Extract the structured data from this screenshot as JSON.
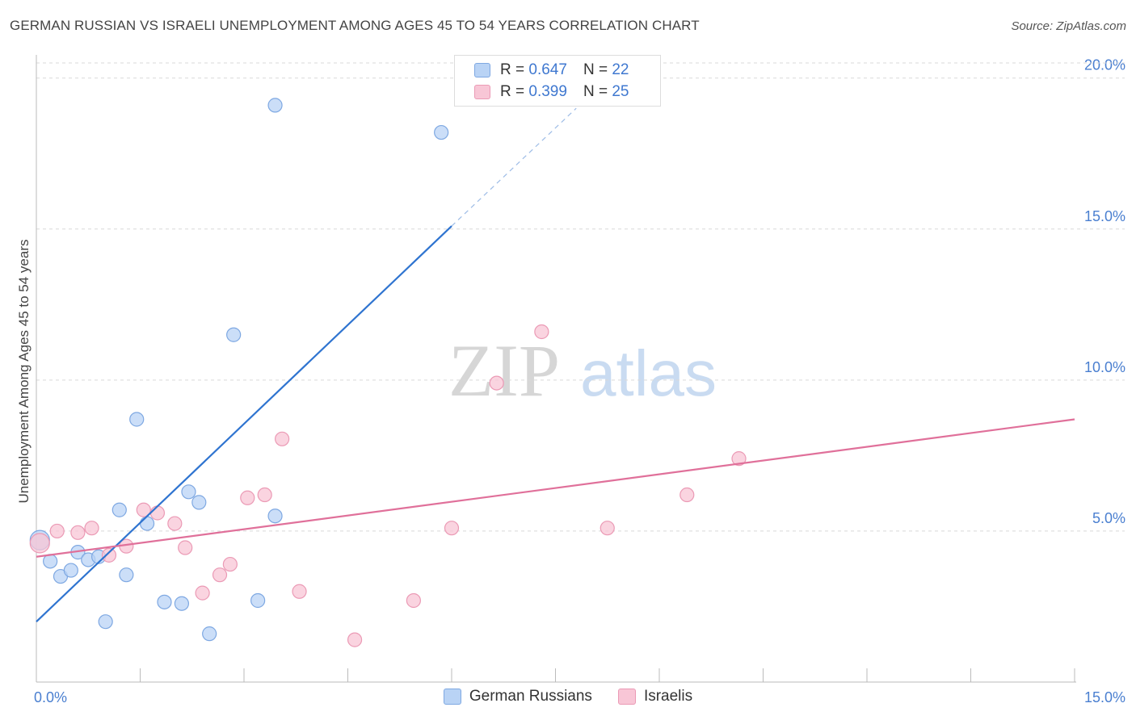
{
  "title": "GERMAN RUSSIAN VS ISRAELI UNEMPLOYMENT AMONG AGES 45 TO 54 YEARS CORRELATION CHART",
  "source": "Source: ZipAtlas.com",
  "watermark": {
    "zip": "ZIP",
    "atlas": "atlas"
  },
  "legend": {
    "rows": [
      {
        "r_label": "R =",
        "r_value": "0.647",
        "n_label": "N =",
        "n_value": "22"
      },
      {
        "r_label": "R =",
        "r_value": "0.399",
        "n_label": "N =",
        "n_value": "25"
      }
    ]
  },
  "colors": {
    "blue_fill": "#b9d3f5",
    "blue_stroke": "#7ea8e2",
    "blue_line": "#2f74d0",
    "pink_fill": "#f8c6d6",
    "pink_stroke": "#eb9ab5",
    "pink_line": "#e0709a",
    "grid": "#d9d9d9",
    "tick_text": "#4a7fd0"
  },
  "chart_data": {
    "type": "scatter",
    "title": "GERMAN RUSSIAN VS ISRAELI UNEMPLOYMENT AMONG AGES 45 TO 54 YEARS CORRELATION CHART",
    "xlabel": "",
    "ylabel": "Unemployment Among Ages 45 to 54 years",
    "xlim": [
      0,
      15
    ],
    "ylim": [
      0,
      20.5
    ],
    "x_tick_labels": [
      "0.0%",
      "15.0%"
    ],
    "y_ticks": [
      5,
      10,
      15,
      20
    ],
    "y_tick_labels": [
      "5.0%",
      "10.0%",
      "15.0%",
      "20.0%"
    ],
    "grid": true,
    "series": [
      {
        "name": "German Russians",
        "r": 0.647,
        "n": 22,
        "trend": {
          "x0": 0,
          "y0": 2.0,
          "x1": 6.0,
          "y1": 15.1,
          "dashed_to_x": 7.8,
          "dashed_to_y": 19.0
        },
        "points": [
          [
            0.05,
            4.7
          ],
          [
            0.2,
            4.0
          ],
          [
            0.35,
            3.5
          ],
          [
            0.5,
            3.7
          ],
          [
            0.6,
            4.3
          ],
          [
            0.75,
            4.05
          ],
          [
            0.9,
            4.15
          ],
          [
            1.0,
            2.0
          ],
          [
            1.2,
            5.7
          ],
          [
            1.3,
            3.55
          ],
          [
            1.45,
            8.7
          ],
          [
            1.6,
            5.25
          ],
          [
            1.85,
            2.65
          ],
          [
            2.1,
            2.6
          ],
          [
            2.2,
            6.3
          ],
          [
            2.35,
            5.95
          ],
          [
            2.5,
            1.6
          ],
          [
            2.85,
            11.5
          ],
          [
            3.2,
            2.7
          ],
          [
            3.45,
            5.5
          ],
          [
            3.45,
            19.1
          ],
          [
            5.85,
            18.2
          ]
        ]
      },
      {
        "name": "Israelis",
        "r": 0.399,
        "n": 25,
        "trend": {
          "x0": 0,
          "y0": 4.15,
          "x1": 15,
          "y1": 8.7
        },
        "points": [
          [
            0.05,
            4.6
          ],
          [
            0.3,
            5.0
          ],
          [
            0.6,
            4.95
          ],
          [
            0.8,
            5.1
          ],
          [
            1.05,
            4.2
          ],
          [
            1.3,
            4.5
          ],
          [
            1.55,
            5.7
          ],
          [
            1.75,
            5.6
          ],
          [
            2.0,
            5.25
          ],
          [
            2.15,
            4.45
          ],
          [
            2.4,
            2.95
          ],
          [
            2.65,
            3.55
          ],
          [
            2.8,
            3.9
          ],
          [
            3.05,
            6.1
          ],
          [
            3.3,
            6.2
          ],
          [
            3.55,
            8.05
          ],
          [
            3.8,
            3.0
          ],
          [
            4.6,
            1.4
          ],
          [
            5.45,
            2.7
          ],
          [
            6.0,
            5.1
          ],
          [
            6.65,
            9.9
          ],
          [
            7.3,
            11.6
          ],
          [
            8.25,
            5.1
          ],
          [
            9.4,
            6.2
          ],
          [
            10.15,
            7.4
          ]
        ]
      }
    ]
  }
}
